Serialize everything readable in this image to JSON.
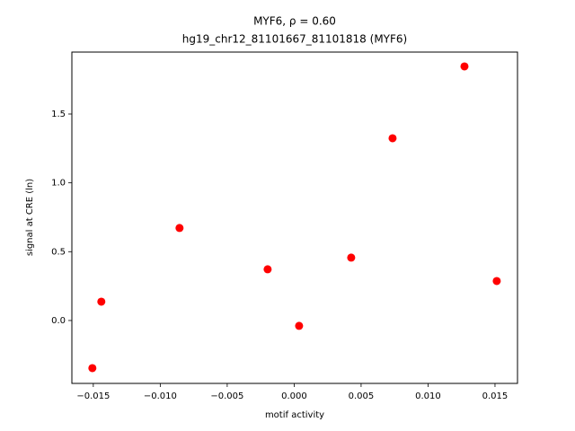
{
  "chart_data": {
    "type": "scatter",
    "title": "MYF6, ρ = 0.60",
    "subtitle": "hg19_chr12_81101667_81101818 (MYF6)",
    "x_label": "motif activity",
    "y_label": "signal at CRE (ln)",
    "color": "#ff0000",
    "x": [
      -0.01507,
      -0.0144,
      -0.00856,
      -0.00198,
      0.00037,
      0.00426,
      0.00735,
      0.01272,
      0.01513
    ],
    "values": [
      -0.346,
      0.137,
      0.672,
      0.372,
      -0.039,
      0.457,
      1.324,
      1.846,
      0.287
    ],
    "xlim": [
      -0.0166,
      0.01668
    ],
    "ylim": [
      -0.457,
      1.95
    ],
    "xticks": [
      {
        "value": -0.015,
        "label": "−0.015"
      },
      {
        "value": -0.01,
        "label": "−0.010"
      },
      {
        "value": -0.005,
        "label": "−0.005"
      },
      {
        "value": 0,
        "label": "0.000"
      },
      {
        "value": 0.005,
        "label": "0.005"
      },
      {
        "value": 0.01,
        "label": "0.010"
      },
      {
        "value": 0.015,
        "label": "0.015"
      }
    ],
    "yticks": [
      {
        "value": 0,
        "label": "0.0"
      },
      0.5,
      {
        "value": 1,
        "label": "1.0"
      },
      1.5
    ]
  }
}
